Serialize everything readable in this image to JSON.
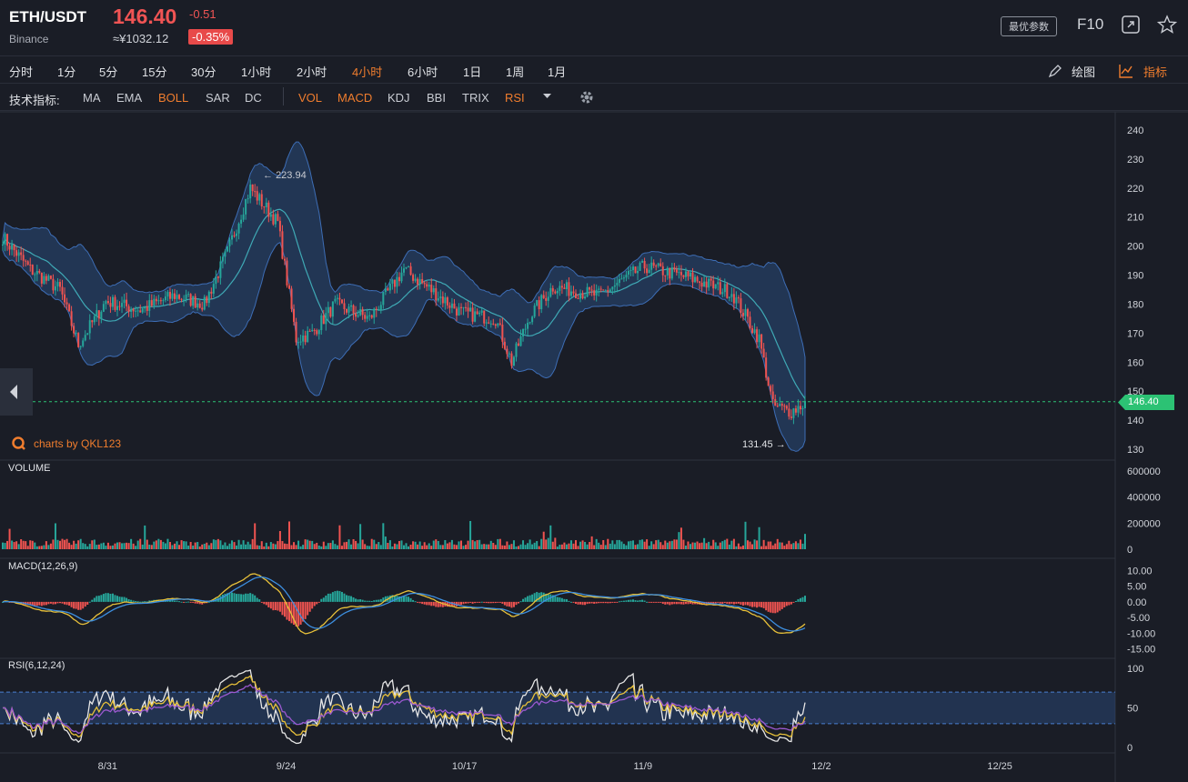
{
  "header": {
    "symbol": "ETH/USDT",
    "exchange": "Binance",
    "price": "146.40",
    "change": "-0.51",
    "cny": "≈¥1032.12",
    "pct": "-0.35%",
    "best_params": "最优参数",
    "f10": "F10"
  },
  "intervals": [
    "分时",
    "1分",
    "5分",
    "15分",
    "30分",
    "1小时",
    "2小时",
    "4小时",
    "6小时",
    "1日",
    "1周",
    "1月"
  ],
  "active_interval": "4小时",
  "tools": {
    "draw": "绘图",
    "indicator": "指标"
  },
  "indicators": {
    "label": "技术指标:",
    "main": [
      "MA",
      "EMA",
      "BOLL",
      "SAR",
      "DC"
    ],
    "sub": [
      "VOL",
      "MACD",
      "KDJ",
      "BBI",
      "TRIX",
      "RSI"
    ],
    "active": [
      "BOLL",
      "VOL",
      "MACD",
      "RSI"
    ]
  },
  "watermark": "charts by QKL123",
  "colors": {
    "up": "#26a69a",
    "down": "#ef5350",
    "accent": "#f07d2e",
    "boll_fill": "#2a4a7a",
    "last_price": "#2cc274"
  },
  "chart_data": [
    {
      "type": "candlestick",
      "title": "ETH/USDT 4小时",
      "ylim": [
        125,
        245
      ],
      "yticks": [
        130,
        140,
        150,
        160,
        170,
        180,
        190,
        200,
        210,
        220,
        230,
        240
      ],
      "x_labels": [
        "8/31",
        "9/24",
        "10/17",
        "11/9",
        "12/2",
        "12/25"
      ],
      "close_path": [
        {
          "i": 0,
          "v": 203
        },
        {
          "i": 12,
          "v": 192
        },
        {
          "i": 25,
          "v": 185
        },
        {
          "i": 33,
          "v": 166
        },
        {
          "i": 45,
          "v": 181
        },
        {
          "i": 60,
          "v": 178
        },
        {
          "i": 75,
          "v": 183
        },
        {
          "i": 88,
          "v": 180
        },
        {
          "i": 98,
          "v": 198
        },
        {
          "i": 108,
          "v": 220
        },
        {
          "i": 120,
          "v": 208
        },
        {
          "i": 128,
          "v": 168
        },
        {
          "i": 135,
          "v": 170
        },
        {
          "i": 145,
          "v": 180
        },
        {
          "i": 160,
          "v": 175
        },
        {
          "i": 175,
          "v": 192
        },
        {
          "i": 185,
          "v": 186
        },
        {
          "i": 200,
          "v": 177
        },
        {
          "i": 215,
          "v": 175
        },
        {
          "i": 222,
          "v": 160
        },
        {
          "i": 230,
          "v": 176
        },
        {
          "i": 240,
          "v": 186
        },
        {
          "i": 260,
          "v": 183
        },
        {
          "i": 280,
          "v": 193
        },
        {
          "i": 300,
          "v": 189
        },
        {
          "i": 318,
          "v": 184
        },
        {
          "i": 330,
          "v": 168
        },
        {
          "i": 336,
          "v": 145
        },
        {
          "i": 344,
          "v": 143
        },
        {
          "i": 350,
          "v": 146
        }
      ],
      "annotations": {
        "high": "223.94",
        "low": "131.45",
        "last": "146.40"
      }
    },
    {
      "type": "bar",
      "title": "VOLUME",
      "ylim": [
        0,
        600000
      ],
      "yticks": [
        0,
        200000,
        400000,
        600000
      ]
    },
    {
      "type": "line",
      "title": "MACD(12,26,9)",
      "ylim": [
        -16,
        11
      ],
      "yticks": [
        10,
        5,
        0,
        -5,
        -10,
        -15
      ],
      "ytick_labels": [
        "10.00",
        "5.00",
        "0.00",
        "-5.00",
        "-10.00",
        "-15.00"
      ]
    },
    {
      "type": "line",
      "title": "RSI(6,12,24)",
      "ylim": [
        0,
        100
      ],
      "yticks": [
        0,
        50,
        100
      ],
      "bands": [
        30,
        70
      ]
    }
  ]
}
